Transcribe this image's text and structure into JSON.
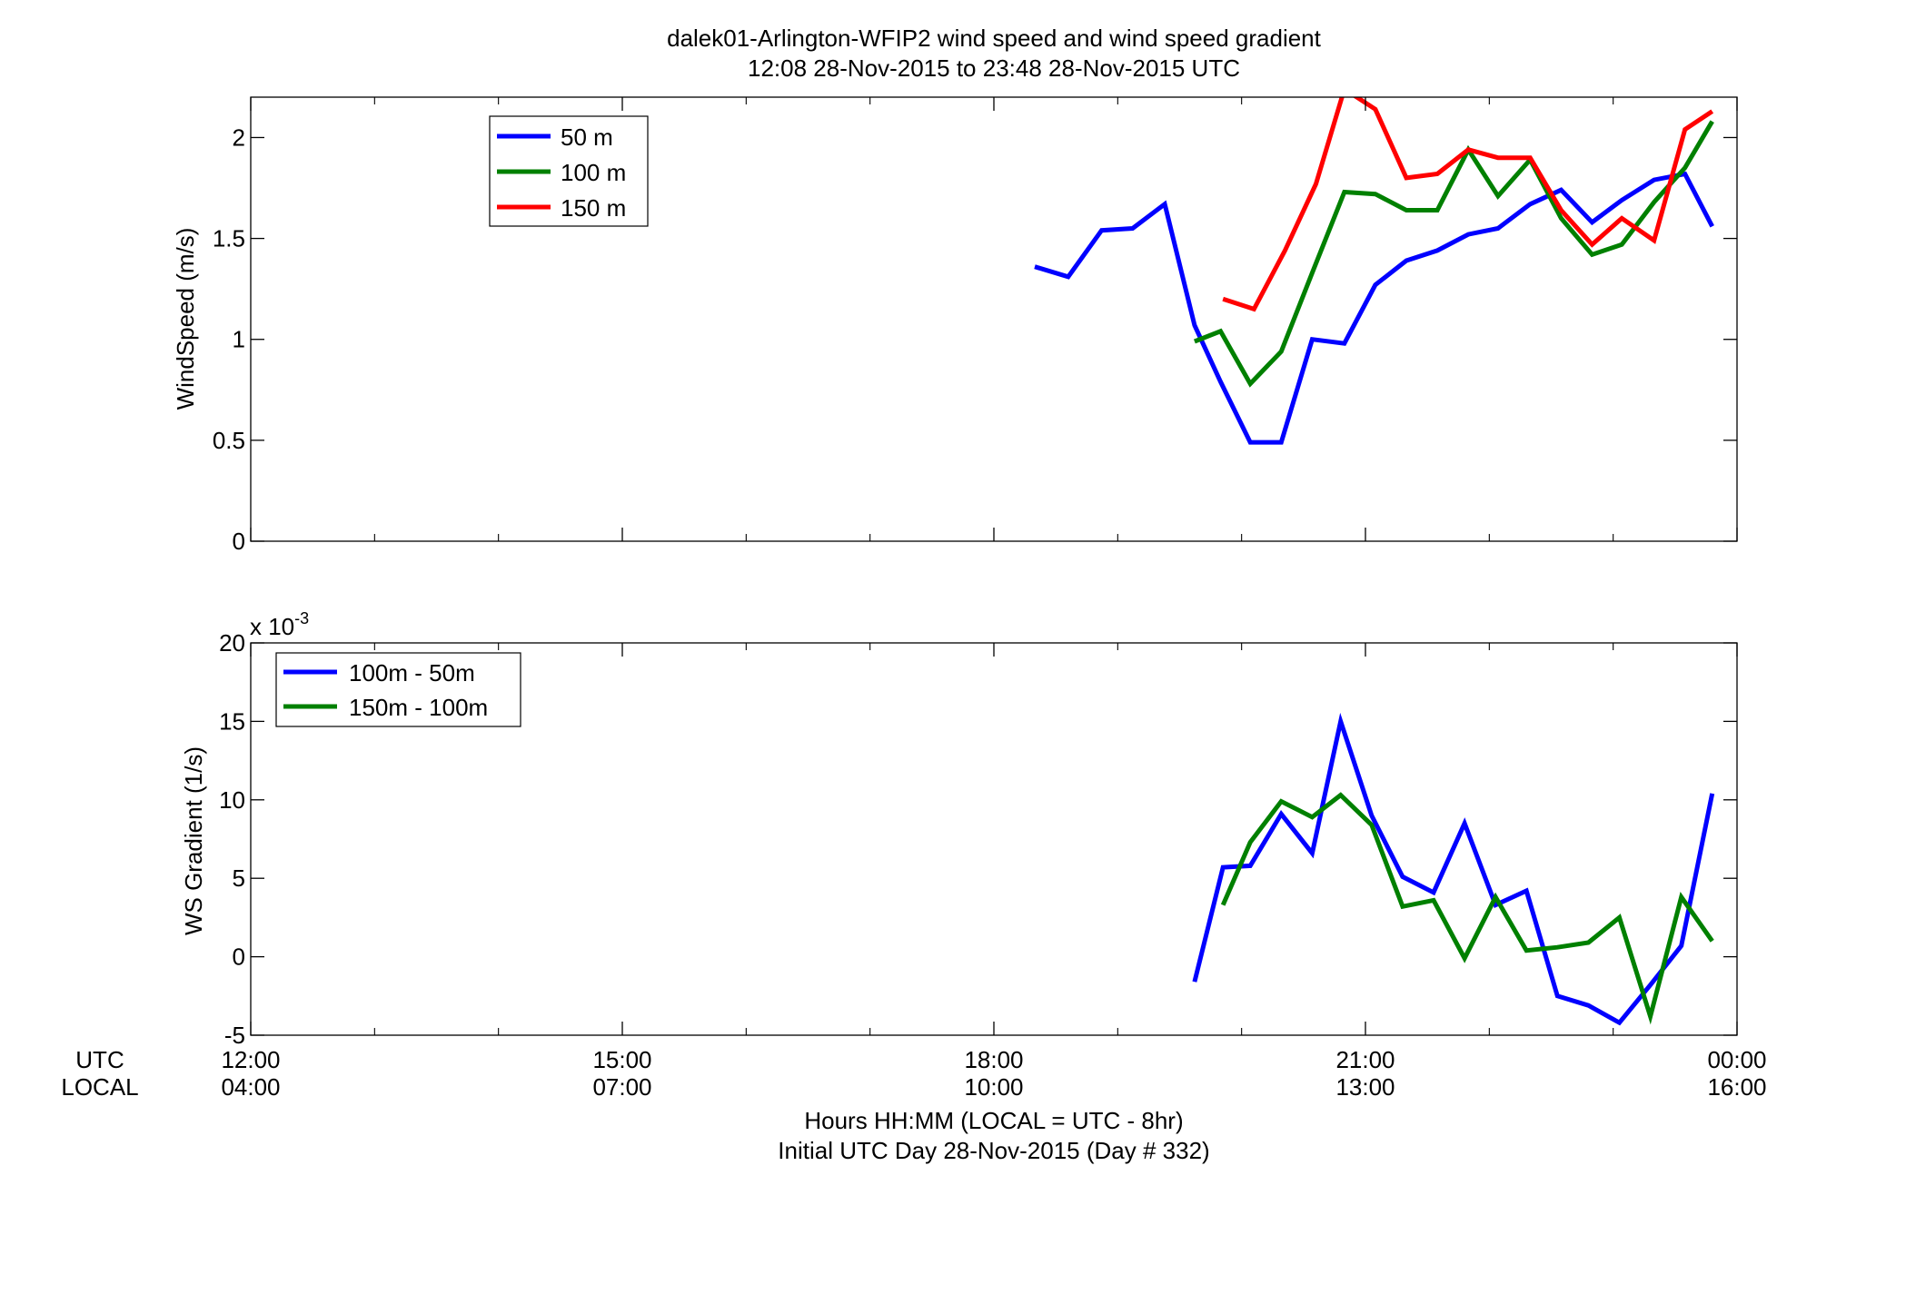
{
  "figure": {
    "title_line1": "dalek01-Arlington-WFIP2  wind speed and wind speed gradient",
    "title_line2": "12:08 28-Nov-2015 to 23:48 28-Nov-2015  UTC",
    "row_label_utc": "UTC",
    "row_label_local": "LOCAL",
    "xlabel_line1": "Hours HH:MM  (LOCAL = UTC - 8hr)",
    "xlabel_line2": "Initial UTC Day 28-Nov-2015 (Day # 332)"
  },
  "chart_data": [
    {
      "type": "line",
      "ylabel": "WindSpeed (m/s)",
      "xlim": [
        12,
        24
      ],
      "ylim": [
        0,
        2.2
      ],
      "yticks": [
        0,
        0.5,
        1,
        1.5,
        2
      ],
      "ytick_labels": [
        "0",
        "0.5",
        "1",
        "1.5",
        "2"
      ],
      "grid": false,
      "legend_position": "top-left",
      "series": [
        {
          "name": "50 m",
          "color": "#0000ff",
          "x": [
            18.33,
            18.6,
            18.87,
            19.12,
            19.38,
            19.62,
            19.83,
            20.07,
            20.32,
            20.57,
            20.83,
            21.08,
            21.33,
            21.58,
            21.83,
            22.07,
            22.33,
            22.58,
            22.83,
            23.07,
            23.33,
            23.58,
            23.8
          ],
          "y": [
            1.36,
            1.31,
            1.54,
            1.55,
            1.67,
            1.07,
            0.79,
            0.49,
            0.49,
            1.0,
            0.98,
            1.27,
            1.39,
            1.44,
            1.52,
            1.55,
            1.67,
            1.74,
            1.58,
            1.69,
            1.79,
            1.82,
            1.56
          ]
        },
        {
          "name": "100 m",
          "color": "#008000",
          "x": [
            19.62,
            19.83,
            20.07,
            20.32,
            20.57,
            20.83,
            21.08,
            21.33,
            21.58,
            21.83,
            22.07,
            22.33,
            22.58,
            22.83,
            23.07,
            23.33,
            23.58,
            23.8
          ],
          "y": [
            0.99,
            1.04,
            0.78,
            0.94,
            1.33,
            1.73,
            1.72,
            1.64,
            1.64,
            1.94,
            1.71,
            1.89,
            1.6,
            1.42,
            1.47,
            1.68,
            1.85,
            2.08
          ]
        },
        {
          "name": "150 m",
          "color": "#ff0000",
          "x": [
            19.85,
            20.1,
            20.35,
            20.6,
            20.83,
            21.08,
            21.33,
            21.58,
            21.83,
            22.07,
            22.33,
            22.58,
            22.83,
            23.07,
            23.33,
            23.58,
            23.8
          ],
          "y": [
            1.2,
            1.15,
            1.44,
            1.77,
            2.24,
            2.14,
            1.8,
            1.82,
            1.94,
            1.9,
            1.9,
            1.64,
            1.47,
            1.6,
            1.49,
            2.04,
            2.13
          ]
        }
      ]
    },
    {
      "type": "line",
      "ylabel": "WS Gradient (1/s)",
      "exponent_label": "x 10",
      "exponent_power": "-3",
      "xlim": [
        12,
        24
      ],
      "ylim": [
        -0.005,
        0.02
      ],
      "yticks": [
        -0.005,
        0,
        0.005,
        0.01,
        0.015,
        0.02
      ],
      "ytick_labels": [
        "-5",
        "0",
        "5",
        "10",
        "15",
        "20"
      ],
      "grid": false,
      "legend_position": "top-left",
      "series": [
        {
          "name": "100m - 50m",
          "color": "#0000ff",
          "x": [
            19.62,
            19.85,
            20.07,
            20.32,
            20.57,
            20.8,
            21.05,
            21.3,
            21.55,
            21.8,
            22.05,
            22.3,
            22.55,
            22.8,
            23.05,
            23.3,
            23.55,
            23.8
          ],
          "y": [
            -0.0016,
            0.0057,
            0.0058,
            0.0091,
            0.0066,
            0.015,
            0.009,
            0.0051,
            0.0041,
            0.0085,
            0.0033,
            0.0042,
            -0.0025,
            -0.0031,
            -0.0042,
            -0.0018,
            0.0007,
            0.0104
          ]
        },
        {
          "name": "150m - 100m",
          "color": "#008000",
          "x": [
            19.85,
            20.07,
            20.32,
            20.57,
            20.8,
            21.05,
            21.3,
            21.55,
            21.8,
            22.05,
            22.3,
            22.55,
            22.8,
            23.05,
            23.3,
            23.55,
            23.8
          ],
          "y": [
            0.0033,
            0.0073,
            0.0099,
            0.0089,
            0.0103,
            0.0084,
            0.0032,
            0.0036,
            -0.0001,
            0.0038,
            0.0004,
            0.0006,
            0.0009,
            0.0025,
            -0.0038,
            0.0038,
            0.001
          ]
        }
      ]
    }
  ],
  "x_axis": {
    "ticks": [
      12,
      15,
      18,
      21,
      24
    ],
    "utc_labels": [
      "12:00",
      "15:00",
      "18:00",
      "21:00",
      "00:00"
    ],
    "local_labels": [
      "04:00",
      "07:00",
      "10:00",
      "13:00",
      "16:00"
    ]
  }
}
